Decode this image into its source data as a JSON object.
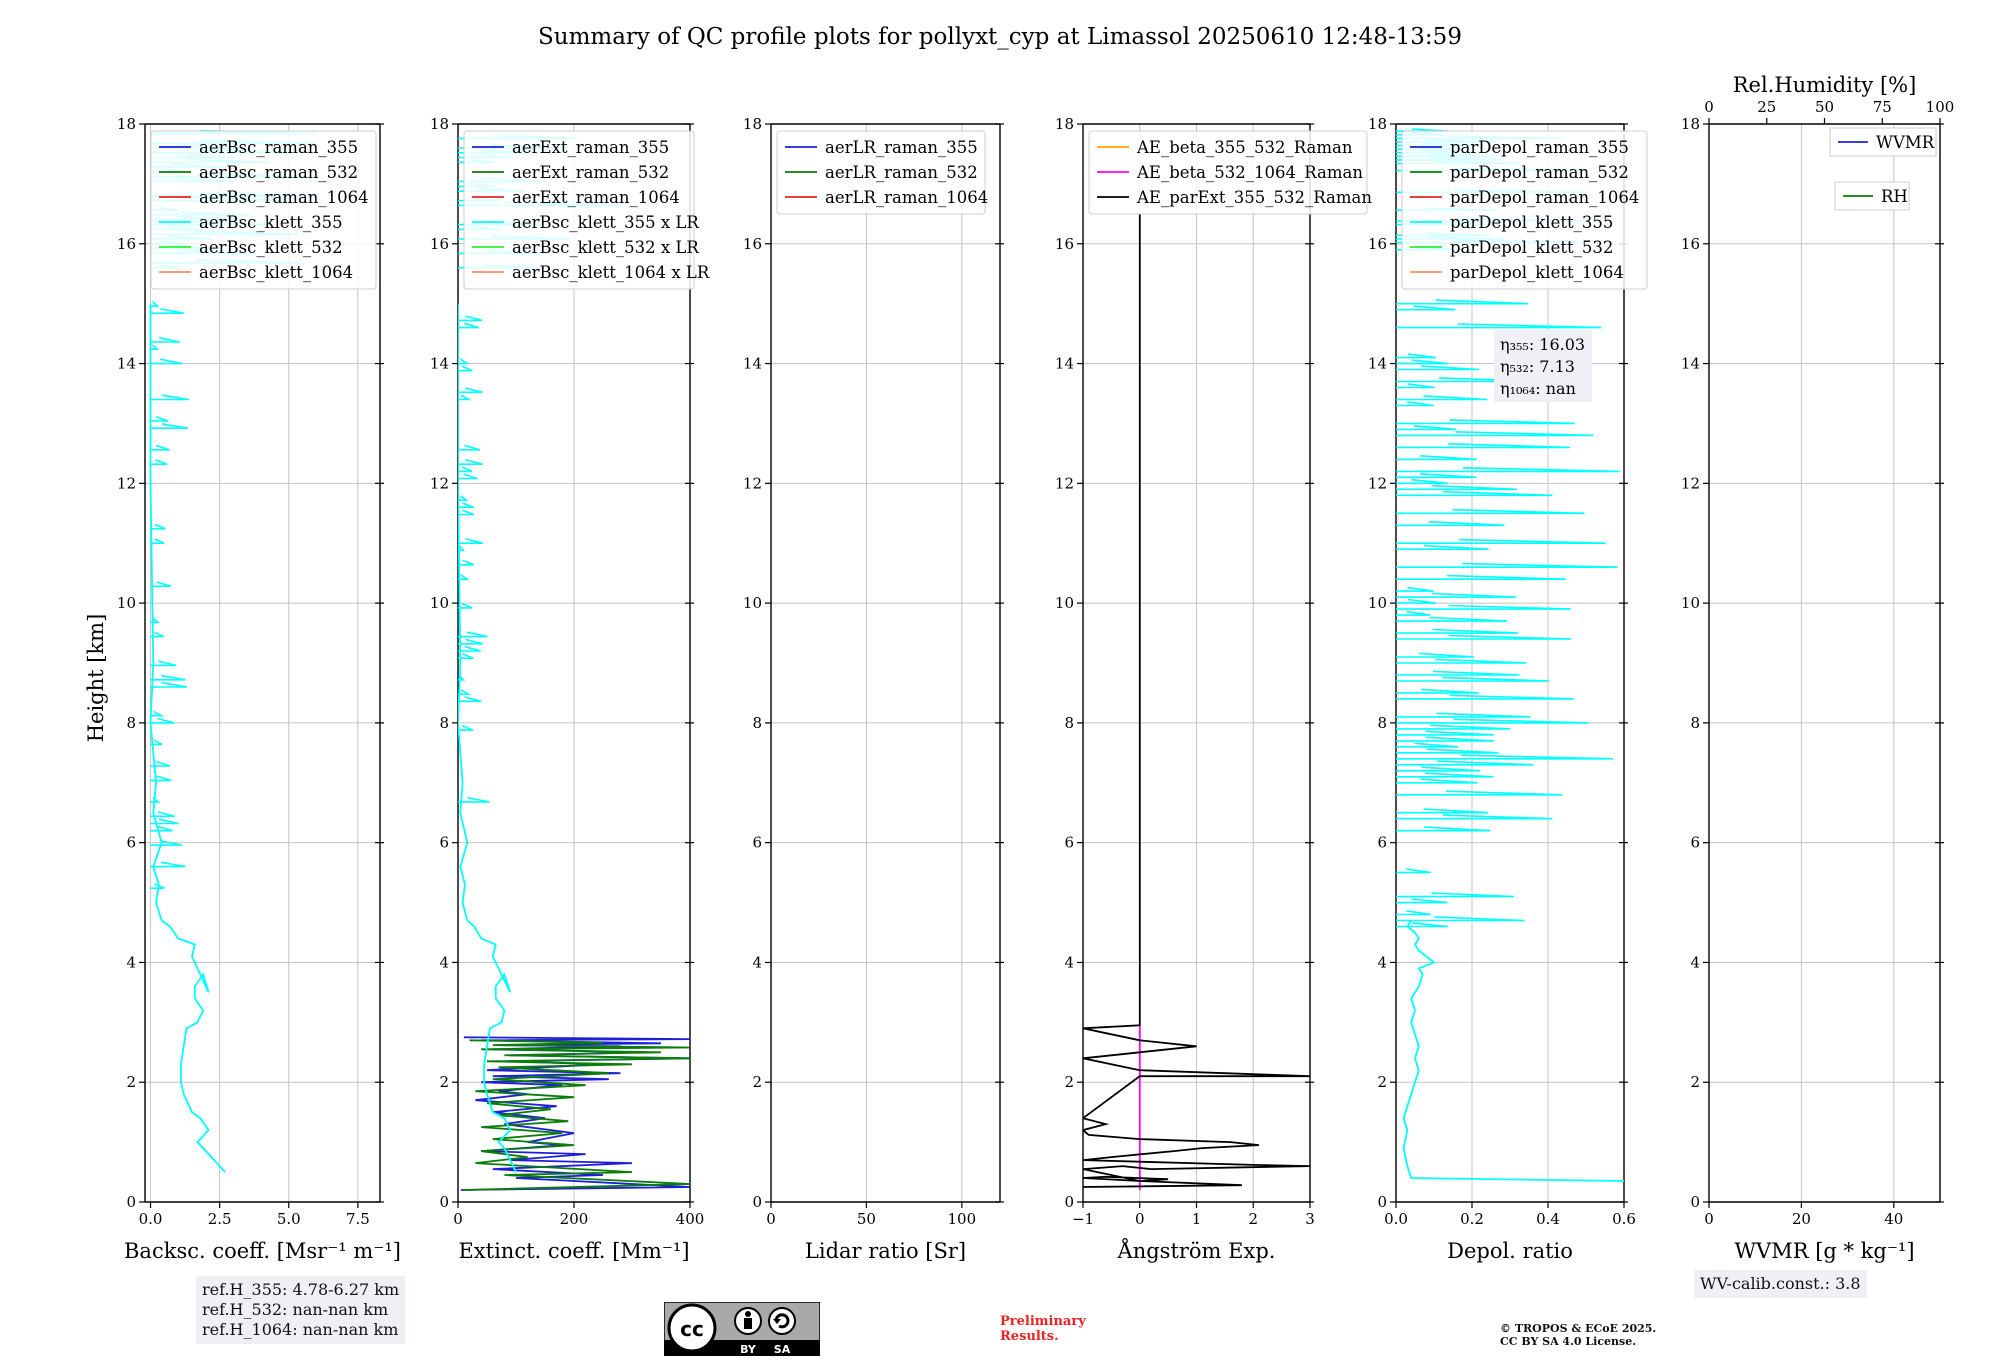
{
  "title": "Summary of QC profile plots for pollyxt_cyp at Limassol 20250610 12:48-13:59",
  "ylabel": "Height [km]",
  "colors": {
    "raman355": "#1f1fd8",
    "raman532": "#0b7d0b",
    "raman1064": "#ee2222",
    "klett355": "#00ffff",
    "klett532": "#33ee33",
    "klett1064": "#ff8866",
    "ae1": "#ffa500",
    "ae2": "#ff00ff",
    "ae3": "#000000",
    "grid": "#c4c4c4"
  },
  "chart_data": [
    {
      "type": "line",
      "id": "bsc",
      "xlabel": "Backsc. coeff. [Msr⁻¹ m⁻¹]",
      "xlim": [
        -0.2,
        8.3
      ],
      "ylim": [
        0,
        18
      ],
      "xticks": [
        "0.0",
        "2.5",
        "5.0",
        "7.5"
      ],
      "xtick_values": [
        0,
        2.5,
        5,
        7.5
      ],
      "yticks": [
        "0",
        "2",
        "4",
        "6",
        "8",
        "10",
        "12",
        "14",
        "16",
        "18"
      ],
      "legend": [
        "aerBsc_raman_355",
        "aerBsc_raman_532",
        "aerBsc_raman_1064",
        "aerBsc_klett_355",
        "aerBsc_klett_532",
        "aerBsc_klett_1064"
      ],
      "series": [
        {
          "name": "aerBsc_klett_355",
          "x": [
            2.7,
            2.3,
            1.9,
            1.7,
            2.1,
            1.8,
            1.5,
            1.2,
            1.1,
            1.1,
            1.2,
            1.3,
            1.7,
            1.9,
            1.6,
            1.6,
            1.9,
            2.1,
            1.7,
            1.5,
            1.6,
            1.0,
            0.7,
            0.4,
            0.2,
            0.3,
            0.1,
            0.4,
            0.1,
            0.2,
            0.0,
            0.1,
            0.0,
            0.0
          ],
          "y": [
            0.5,
            0.7,
            0.9,
            1.0,
            1.2,
            1.4,
            1.5,
            1.8,
            2.0,
            2.3,
            2.6,
            2.9,
            3.0,
            3.2,
            3.4,
            3.6,
            3.8,
            3.5,
            3.9,
            4.1,
            4.3,
            4.4,
            4.6,
            4.7,
            5.0,
            5.3,
            5.6,
            6.0,
            6.5,
            7.0,
            8.0,
            9.0,
            12.0,
            15.0
          ]
        }
      ]
    },
    {
      "type": "line",
      "id": "ext",
      "xlabel": "Extinct. coeff. [Mm⁻¹]",
      "xlim": [
        0,
        400
      ],
      "ylim": [
        0,
        18
      ],
      "xticks": [
        "0",
        "200",
        "400"
      ],
      "xtick_values": [
        0,
        200,
        400
      ],
      "yticks": [
        "0",
        "2",
        "4",
        "6",
        "8",
        "10",
        "12",
        "14",
        "16",
        "18"
      ],
      "legend": [
        "aerExt_raman_355",
        "aerExt_raman_532",
        "aerExt_raman_1064",
        "aerBsc_klett_355 x LR",
        "aerBsc_klett_532 x LR",
        "aerBsc_klett_1064 x LR"
      ],
      "series": [
        {
          "name": "aerExt_raman_355",
          "x": [
            5,
            400,
            100,
            250,
            60,
            300,
            90,
            220,
            40,
            180,
            120,
            200,
            80,
            150,
            60,
            170,
            30,
            120,
            70,
            180,
            40,
            260,
            60,
            280,
            50,
            250,
            80,
            400,
            90,
            320,
            60,
            280,
            70,
            350,
            40,
            400,
            10
          ],
          "y": [
            0.2,
            0.25,
            0.4,
            0.45,
            0.55,
            0.65,
            0.7,
            0.8,
            0.85,
            0.95,
            1.0,
            1.15,
            1.3,
            1.4,
            1.5,
            1.6,
            1.7,
            1.8,
            1.85,
            1.95,
            2.0,
            2.05,
            2.1,
            2.15,
            2.2,
            2.3,
            2.35,
            2.4,
            2.45,
            2.5,
            2.55,
            2.6,
            2.62,
            2.65,
            2.7,
            2.72,
            2.75
          ]
        },
        {
          "name": "aerExt_raman_532",
          "x": [
            10,
            400,
            80,
            300,
            30,
            120,
            40,
            200,
            60,
            180,
            40,
            190,
            70,
            160,
            50,
            200,
            30,
            220,
            60,
            260,
            70,
            300,
            50,
            400,
            80,
            350,
            40,
            400,
            60,
            250,
            20
          ],
          "y": [
            0.2,
            0.3,
            0.45,
            0.5,
            0.65,
            0.75,
            0.85,
            0.95,
            1.05,
            1.15,
            1.25,
            1.35,
            1.45,
            1.55,
            1.65,
            1.75,
            1.85,
            1.95,
            2.05,
            2.15,
            2.25,
            2.3,
            2.35,
            2.4,
            2.45,
            2.5,
            2.55,
            2.58,
            2.62,
            2.66,
            2.7
          ]
        },
        {
          "name": "aerBsc_klett_355 x LR",
          "x": [
            100,
            90,
            80,
            70,
            90,
            80,
            60,
            50,
            45,
            45,
            50,
            55,
            75,
            80,
            65,
            65,
            80,
            90,
            70,
            60,
            65,
            40,
            28,
            16,
            8,
            12,
            4,
            16,
            4,
            8,
            0,
            4,
            0,
            0
          ],
          "y": [
            0.5,
            0.7,
            0.9,
            1.0,
            1.2,
            1.4,
            1.5,
            1.8,
            2.0,
            2.3,
            2.6,
            2.9,
            3.0,
            3.2,
            3.4,
            3.6,
            3.8,
            3.5,
            3.9,
            4.1,
            4.3,
            4.4,
            4.6,
            4.7,
            5.0,
            5.3,
            5.6,
            6.0,
            6.5,
            7.0,
            8.0,
            9.0,
            12.0,
            15.0
          ]
        }
      ]
    },
    {
      "type": "line",
      "id": "lr",
      "xlabel": "Lidar ratio [Sr]",
      "xlim": [
        0,
        120
      ],
      "ylim": [
        0,
        18
      ],
      "xticks": [
        "0",
        "50",
        "100"
      ],
      "xtick_values": [
        0,
        50,
        100
      ],
      "yticks": [
        "0",
        "2",
        "4",
        "6",
        "8",
        "10",
        "12",
        "14",
        "16",
        "18"
      ],
      "legend": [
        "aerLR_raman_355",
        "aerLR_raman_532",
        "aerLR_raman_1064"
      ],
      "series": []
    },
    {
      "type": "line",
      "id": "ae",
      "xlabel": "Ångström Exp.",
      "xlim": [
        -1,
        3
      ],
      "ylim": [
        0,
        18
      ],
      "xticks": [
        "−1",
        "0",
        "1",
        "2",
        "3"
      ],
      "xtick_values": [
        -1,
        0,
        1,
        2,
        3
      ],
      "yticks": [
        "0",
        "2",
        "4",
        "6",
        "8",
        "10",
        "12",
        "14",
        "16",
        "18"
      ],
      "legend": [
        "AE_beta_355_532_Raman",
        "AE_beta_532_1064_Raman",
        "AE_parExt_355_532_Raman"
      ],
      "series": [
        {
          "name": "AE_beta_532_1064_Raman",
          "x": [
            0,
            0
          ],
          "y": [
            0.2,
            2.95
          ]
        },
        {
          "name": "AE_parExt_355_532_Raman",
          "x": [
            -1,
            1.8,
            0,
            -1,
            -0.6,
            0.5,
            0,
            -1,
            -0.7,
            -0.3,
            0.2,
            3,
            2.0,
            -1,
            -0.5,
            0.6,
            1.1,
            2.1,
            1.6,
            0,
            -0.9,
            -1.0,
            -0.6,
            -1,
            0,
            3,
            1.5,
            0,
            -1,
            0,
            1.0,
            0,
            -1,
            0,
            0,
            0
          ],
          "y": [
            0.25,
            0.28,
            0.35,
            0.4,
            0.42,
            0.38,
            0.35,
            0.55,
            0.57,
            0.6,
            0.55,
            0.6,
            0.62,
            0.7,
            0.75,
            0.85,
            0.9,
            0.95,
            1.0,
            1.05,
            1.12,
            1.2,
            1.3,
            1.4,
            2.1,
            2.1,
            2.15,
            2.2,
            2.4,
            2.5,
            2.6,
            2.7,
            2.9,
            2.95,
            3.0,
            16.5
          ]
        }
      ]
    },
    {
      "type": "line",
      "id": "depol",
      "xlabel": "Depol. ratio",
      "xlim": [
        0,
        0.6
      ],
      "ylim": [
        0,
        18
      ],
      "xticks": [
        "0.0",
        "0.2",
        "0.4",
        "0.6"
      ],
      "xtick_values": [
        0,
        0.2,
        0.4,
        0.6
      ],
      "yticks": [
        "0",
        "2",
        "4",
        "6",
        "8",
        "10",
        "12",
        "14",
        "16",
        "18"
      ],
      "legend": [
        "parDepol_raman_355",
        "parDepol_raman_532",
        "parDepol_raman_1064",
        "parDepol_klett_355",
        "parDepol_klett_532",
        "parDepol_klett_1064"
      ],
      "annotation": [
        "η₃₅₅: 16.03",
        "η₅₃₂: 7.13",
        "η₁₀₆₄: nan"
      ],
      "series": [
        {
          "name": "parDepol_klett_355",
          "x": [
            0.6,
            0.04,
            0.03,
            0.02,
            0.03,
            0.02,
            0.03,
            0.04,
            0.05,
            0.06,
            0.05,
            0.06,
            0.05,
            0.04,
            0.05,
            0.04,
            0.06,
            0.07,
            0.06,
            0.1,
            0.08,
            0.06,
            0.05,
            0.06,
            0.05,
            0.03,
            0.04
          ],
          "y": [
            0.35,
            0.4,
            0.6,
            0.9,
            1.2,
            1.4,
            1.6,
            1.8,
            2.0,
            2.2,
            2.4,
            2.6,
            2.8,
            3.0,
            3.2,
            3.4,
            3.6,
            3.8,
            3.9,
            4.0,
            4.1,
            4.2,
            4.3,
            4.4,
            4.5,
            4.6,
            4.7
          ]
        }
      ]
    },
    {
      "type": "line",
      "id": "wv",
      "xlabel": "WVMR [g * kg⁻¹]",
      "xlim": [
        0,
        50
      ],
      "ylim": [
        0,
        18
      ],
      "xticks": [
        "0",
        "20",
        "40"
      ],
      "xtick_values": [
        0,
        20,
        40
      ],
      "yticks": [
        "0",
        "2",
        "4",
        "6",
        "8",
        "10",
        "12",
        "14",
        "16",
        "18"
      ],
      "top_axis": {
        "label": "Rel.Humidity [%]",
        "xlim": [
          0,
          100
        ],
        "xticks": [
          "0",
          "25",
          "50",
          "75",
          "100"
        ],
        "xtick_values": [
          0,
          25,
          50,
          75,
          100
        ]
      },
      "legend": [
        "WVMR",
        "RH"
      ],
      "series": []
    }
  ],
  "notes": {
    "refh": [
      "ref.H_355: 4.78-6.27 km",
      "ref.H_532: nan-nan km",
      "ref.H_1064: nan-nan km"
    ],
    "wvcalib": "WV-calib.const.: 3.8",
    "prelim": [
      "Preliminary",
      "Results."
    ],
    "copyright": [
      "© TROPOS & ECoE 2025.",
      "CC BY SA 4.0 License."
    ],
    "cc_badge": [
      "cc",
      "BY",
      "SA"
    ]
  }
}
